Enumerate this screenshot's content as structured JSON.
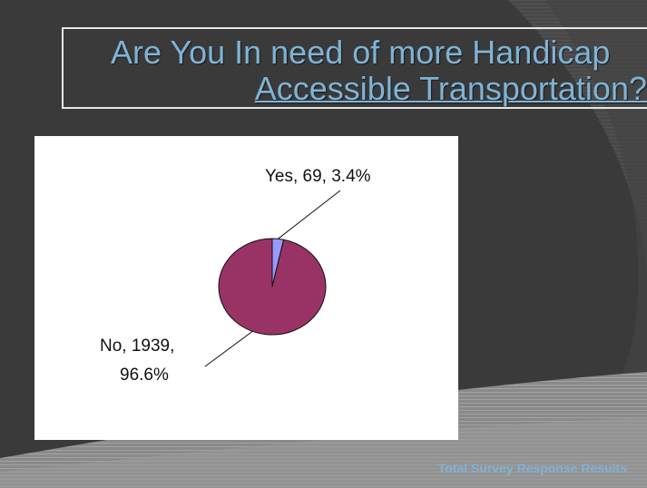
{
  "slide": {
    "title_line1": "Are You In need of more Handicap",
    "title_line2": "Accessible Transportation?",
    "footer": "Total Survey Response Results"
  },
  "colors": {
    "background": "#3a3a3a",
    "title_text": "#7fb3d5",
    "no_slice": "#993366",
    "yes_slice": "#9999ff"
  },
  "chart_data": {
    "type": "pie",
    "title": "",
    "slices": [
      {
        "label": "Yes",
        "value": 69,
        "percent": 3.4,
        "label_text": "Yes, 69, 3.4%",
        "color": "#9999ff"
      },
      {
        "label": "No",
        "value": 1939,
        "percent": 96.6,
        "label_text_line1": "No, 1939,",
        "label_text_line2": "96.6%",
        "color": "#993366"
      }
    ],
    "legend": "none"
  }
}
